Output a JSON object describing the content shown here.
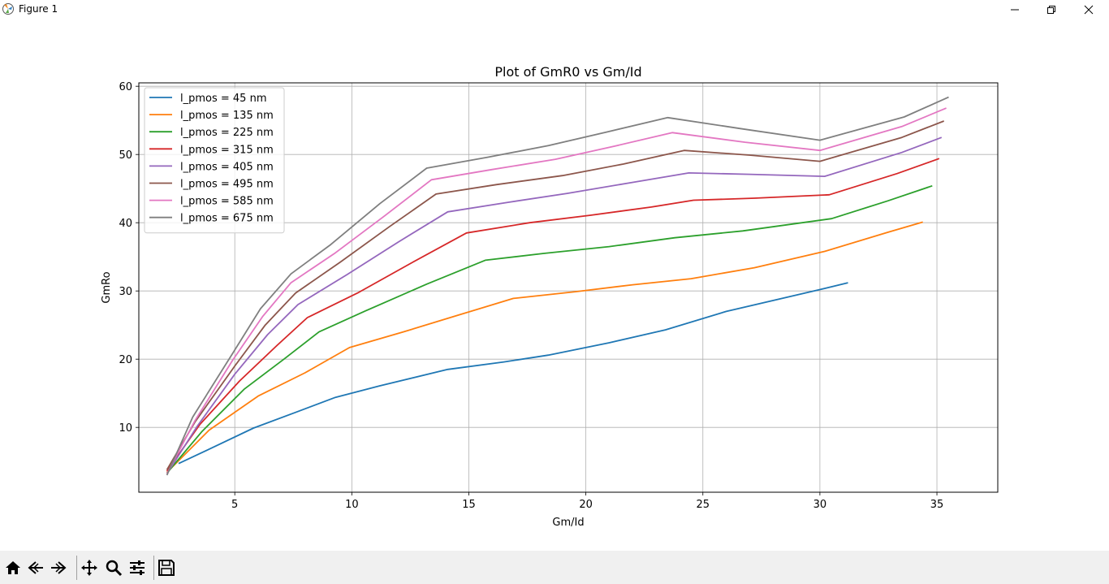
{
  "window": {
    "title": "Figure 1"
  },
  "toolbar": {
    "buttons": [
      {
        "name": "home-button",
        "icon": "home-icon"
      },
      {
        "name": "back-button",
        "icon": "back-arrow-icon"
      },
      {
        "name": "forward-button",
        "icon": "forward-arrow-icon"
      },
      {
        "name": "pan-button",
        "icon": "move-icon"
      },
      {
        "name": "zoom-button",
        "icon": "magnifier-icon"
      },
      {
        "name": "configure-subplots-button",
        "icon": "sliders-icon"
      },
      {
        "name": "save-button",
        "icon": "floppy-disk-icon"
      }
    ]
  },
  "chart_data": {
    "type": "line",
    "title": "Plot of GmR0 vs Gm/Id",
    "xlabel": "Gm/Id",
    "ylabel": "GmRo",
    "xlim": [
      0.9,
      37.6
    ],
    "ylim": [
      0.5,
      60.5
    ],
    "xticks": [
      5,
      10,
      15,
      20,
      25,
      30,
      35
    ],
    "yticks": [
      10,
      20,
      30,
      40,
      50,
      60
    ],
    "grid": true,
    "legend_position": "upper-left",
    "series": [
      {
        "name": "l_pmos = 45 nm",
        "color": "#1f77b4",
        "x": [
          2.6,
          3.9,
          5.8,
          7.6,
          9.3,
          11.2,
          14.1,
          16.5,
          18.4,
          21.0,
          23.4,
          26.0,
          30.0,
          31.2
        ],
        "y": [
          4.7,
          6.8,
          9.9,
          12.2,
          14.4,
          16.1,
          18.5,
          19.6,
          20.6,
          22.4,
          24.3,
          27.0,
          30.2,
          31.2
        ]
      },
      {
        "name": "l_pmos = 135 nm",
        "color": "#ff7f0e",
        "x": [
          2.1,
          3.9,
          6.0,
          8.0,
          9.9,
          12.2,
          14.5,
          16.9,
          19.6,
          22.0,
          24.5,
          27.2,
          30.2,
          32.9,
          34.4
        ],
        "y": [
          3.4,
          9.6,
          14.6,
          18.0,
          21.7,
          24.0,
          26.4,
          28.9,
          29.9,
          30.9,
          31.8,
          33.4,
          35.8,
          38.6,
          40.1
        ]
      },
      {
        "name": "l_pmos = 225 nm",
        "color": "#2ca02c",
        "x": [
          2.1,
          3.6,
          5.4,
          7.1,
          8.6,
          10.6,
          13.2,
          15.7,
          18.2,
          21.0,
          23.8,
          26.7,
          30.5,
          32.9,
          34.8
        ],
        "y": [
          3.3,
          9.4,
          15.6,
          20.0,
          24.0,
          27.1,
          31.0,
          34.5,
          35.5,
          36.5,
          37.8,
          38.8,
          40.6,
          43.2,
          45.4
        ]
      },
      {
        "name": "l_pmos = 315 nm",
        "color": "#d62728",
        "x": [
          2.1,
          3.5,
          5.2,
          6.8,
          8.1,
          10.3,
          12.6,
          14.9,
          17.6,
          20.2,
          22.8,
          24.6,
          27.2,
          30.4,
          33.3,
          35.1
        ],
        "y": [
          3.6,
          10.4,
          16.8,
          22.0,
          26.1,
          29.8,
          34.2,
          38.5,
          40.0,
          41.1,
          42.3,
          43.3,
          43.6,
          44.1,
          47.2,
          49.4
        ]
      },
      {
        "name": "l_pmos = 405 nm",
        "color": "#9467bd",
        "x": [
          2.1,
          3.4,
          5.0,
          6.4,
          7.7,
          9.8,
          12.0,
          14.1,
          16.7,
          19.2,
          21.8,
          24.4,
          27.0,
          30.2,
          33.5,
          35.2
        ],
        "y": [
          3.2,
          10.2,
          17.8,
          23.6,
          28.0,
          32.4,
          37.2,
          41.6,
          43.0,
          44.3,
          45.8,
          47.3,
          47.1,
          46.8,
          50.3,
          52.5
        ]
      },
      {
        "name": "l_pmos = 495 nm",
        "color": "#8c564b",
        "x": [
          2.1,
          3.3,
          5.0,
          6.3,
          7.6,
          9.5,
          11.6,
          13.6,
          16.2,
          19.0,
          21.6,
          24.2,
          27.0,
          30.0,
          33.5,
          35.3
        ],
        "y": [
          3.8,
          10.8,
          19.0,
          25.0,
          29.7,
          34.2,
          39.4,
          44.2,
          45.6,
          46.9,
          48.6,
          50.6,
          49.9,
          49.0,
          52.5,
          54.9
        ]
      },
      {
        "name": "l_pmos = 585 nm",
        "color": "#e377c2",
        "x": [
          2.1,
          3.3,
          4.9,
          6.2,
          7.4,
          9.3,
          11.4,
          13.4,
          16.0,
          18.7,
          21.2,
          23.7,
          26.8,
          30.0,
          33.5,
          35.4
        ],
        "y": [
          3.2,
          11.0,
          19.8,
          26.3,
          31.2,
          35.6,
          41.0,
          46.3,
          47.8,
          49.3,
          51.2,
          53.2,
          51.8,
          50.6,
          54.1,
          56.8
        ]
      },
      {
        "name": "l_pmos = 675 nm",
        "color": "#7f7f7f",
        "x": [
          2.1,
          3.2,
          4.9,
          6.1,
          7.4,
          9.1,
          11.2,
          13.2,
          15.8,
          18.4,
          20.9,
          23.5,
          26.6,
          30.0,
          33.6,
          35.5
        ],
        "y": [
          3.0,
          11.5,
          20.8,
          27.4,
          32.5,
          36.8,
          42.8,
          48.0,
          49.6,
          51.3,
          53.3,
          55.4,
          53.8,
          52.1,
          55.5,
          58.4
        ]
      }
    ]
  }
}
